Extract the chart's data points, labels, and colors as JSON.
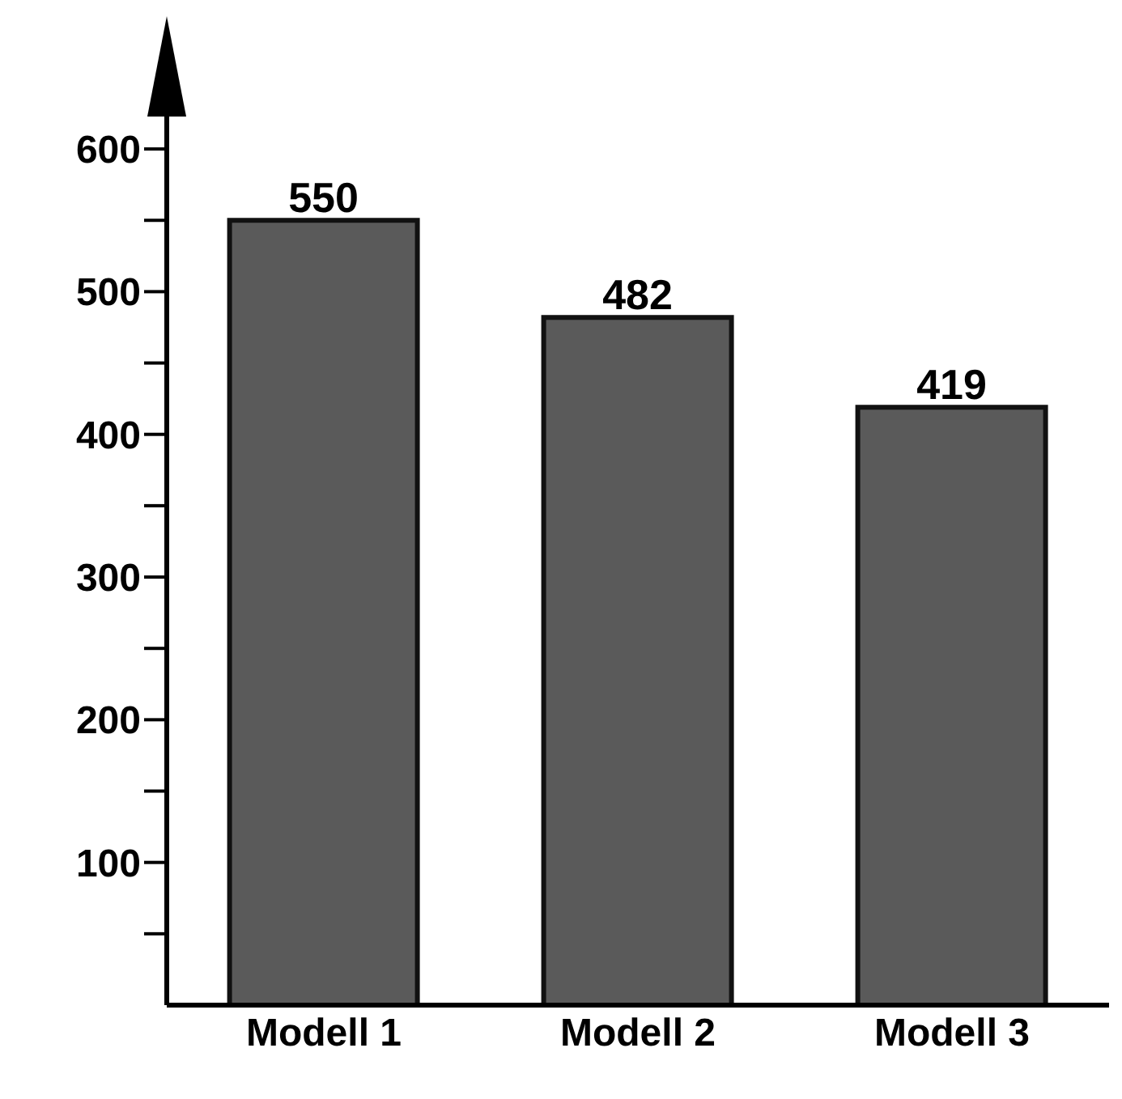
{
  "chart_data": {
    "type": "bar",
    "categories": [
      "Modell  1",
      "Modell  2",
      "Modell  3"
    ],
    "values": [
      550,
      482,
      419
    ],
    "color": "#5a5a5a",
    "data_labels": true,
    "grid": false,
    "legend": false,
    "ylim": [
      0,
      625
    ],
    "yticks": [
      {
        "value": 50,
        "label": null
      },
      100,
      {
        "value": 150,
        "label": null
      },
      200,
      {
        "value": 250,
        "label": null
      },
      300,
      {
        "value": 350,
        "label": null
      },
      400,
      {
        "value": 450,
        "label": null
      },
      500,
      {
        "value": 550,
        "label": null
      },
      600
    ]
  }
}
